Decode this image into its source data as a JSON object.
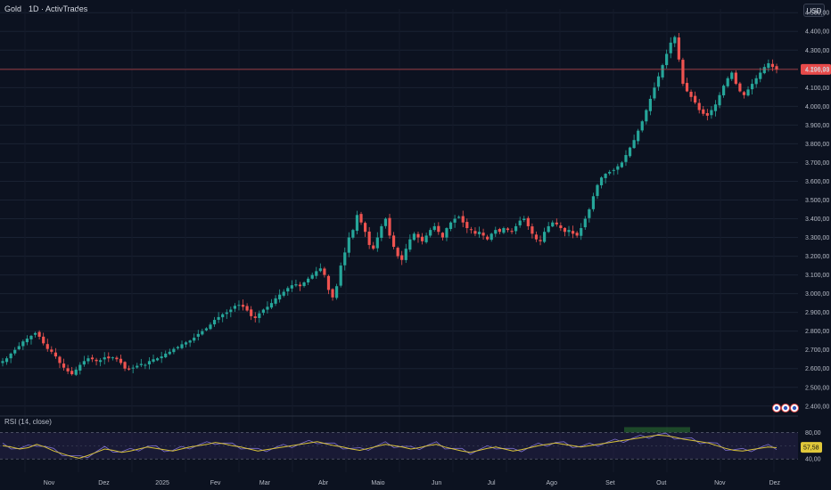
{
  "header": {
    "title": "Gold · 1D · ActivTrades",
    "currency_button": "USD"
  },
  "rsi_panel": {
    "title": "RSI (14, close)",
    "current_label": "57,58",
    "levels": [
      80,
      40
    ]
  },
  "colors": {
    "up": "#26a69a",
    "down": "#ef5350",
    "price_line": "#e64a4a",
    "rsi_line": "#7e6fd1",
    "rsi_ma": "#d8c23a",
    "background": "#0c1220",
    "grid": "#1a2233",
    "rsi_band": "#2a2550"
  },
  "chart_data": [
    {
      "type": "candlestick",
      "title": "Gold · 1D · ActivTrades",
      "y_axis_ticks": [
        "4.500,00",
        "4.400,00",
        "4.300,00",
        "4.200,00",
        "4.100,00",
        "4.000,00",
        "3.900,00",
        "3.800,00",
        "3.700,00",
        "3.600,00",
        "3.500,00",
        "3.400,00",
        "3.300,00",
        "3.200,00",
        "3.100,00",
        "3.000,00",
        "2.900,00",
        "2.800,00",
        "2.700,00",
        "2.600,00",
        "2.500,00",
        "2.400,00"
      ],
      "y_tick_values": [
        4500,
        4400,
        4300,
        4200,
        4100,
        4000,
        3900,
        3800,
        3700,
        3600,
        3500,
        3400,
        3300,
        3200,
        3100,
        3000,
        2900,
        2800,
        2700,
        2600,
        2500,
        2400
      ],
      "x_axis_labels": [
        "Nov",
        "Dez",
        "2025",
        "Fev",
        "Mar",
        "Abr",
        "Maio",
        "Jun",
        "Jul",
        "Ago",
        "Set",
        "Out",
        "Nov",
        "Dez"
      ],
      "x_label_positions": [
        0,
        30,
        62,
        91,
        118,
        150,
        180,
        212,
        242,
        275,
        307,
        335,
        367,
        397
      ],
      "ylim": [
        2380,
        4520
      ],
      "current_price": 4196.93,
      "current_price_label": "4.196,93",
      "series_close": [
        2640,
        2655,
        2680,
        2700,
        2720,
        2745,
        2760,
        2775,
        2790,
        2770,
        2735,
        2705,
        2690,
        2665,
        2630,
        2605,
        2585,
        2570,
        2595,
        2620,
        2640,
        2655,
        2650,
        2640,
        2645,
        2660,
        2655,
        2660,
        2650,
        2630,
        2600,
        2595,
        2605,
        2615,
        2625,
        2620,
        2640,
        2650,
        2655,
        2665,
        2680,
        2690,
        2705,
        2715,
        2730,
        2740,
        2750,
        2765,
        2785,
        2800,
        2815,
        2835,
        2860,
        2875,
        2890,
        2900,
        2915,
        2935,
        2940,
        2930,
        2910,
        2880,
        2870,
        2895,
        2915,
        2930,
        2950,
        2975,
        2995,
        3010,
        3030,
        3045,
        3050,
        3040,
        3060,
        3080,
        3100,
        3120,
        3135,
        3100,
        3020,
        2980,
        3040,
        3150,
        3220,
        3300,
        3340,
        3420,
        3380,
        3330,
        3260,
        3240,
        3300,
        3360,
        3400,
        3310,
        3250,
        3200,
        3180,
        3240,
        3290,
        3320,
        3300,
        3280,
        3310,
        3340,
        3360,
        3330,
        3300,
        3350,
        3380,
        3400,
        3410,
        3380,
        3350,
        3340,
        3320,
        3330,
        3310,
        3290,
        3320,
        3340,
        3330,
        3350,
        3340,
        3330,
        3360,
        3390,
        3400,
        3360,
        3320,
        3290,
        3280,
        3330,
        3360,
        3380,
        3370,
        3350,
        3330,
        3340,
        3320,
        3310,
        3350,
        3400,
        3450,
        3520,
        3580,
        3620,
        3640,
        3650,
        3660,
        3680,
        3700,
        3740,
        3780,
        3820,
        3870,
        3920,
        3980,
        4040,
        4100,
        4160,
        4220,
        4280,
        4340,
        4370,
        4250,
        4120,
        4080,
        4050,
        4020,
        3980,
        3960,
        3950,
        3980,
        4010,
        4060,
        4110,
        4150,
        4180,
        4120,
        4080,
        4060,
        4090,
        4120,
        4150,
        4180,
        4210,
        4230,
        4210,
        4196.93
      ],
      "rsi_values_approx": [
        60,
        58,
        55,
        57,
        62,
        58,
        52,
        48,
        44,
        41,
        45,
        50,
        55,
        53,
        50,
        52,
        55,
        58,
        56,
        54,
        52,
        55,
        58,
        60,
        62,
        65,
        63,
        60,
        58,
        55,
        52,
        54,
        56,
        58,
        60,
        62,
        64,
        66,
        63,
        60,
        58,
        55,
        53,
        56,
        59,
        62,
        60,
        58,
        55,
        57,
        60,
        62,
        58,
        55,
        52,
        50,
        53,
        56,
        58,
        55,
        52,
        54,
        57,
        60,
        62,
        64,
        62,
        60,
        58,
        60,
        62,
        64,
        66,
        68,
        70,
        72,
        74,
        76,
        75,
        73,
        70,
        68,
        66,
        64,
        60,
        56,
        53,
        52,
        54,
        56,
        58,
        57
      ]
    }
  ]
}
